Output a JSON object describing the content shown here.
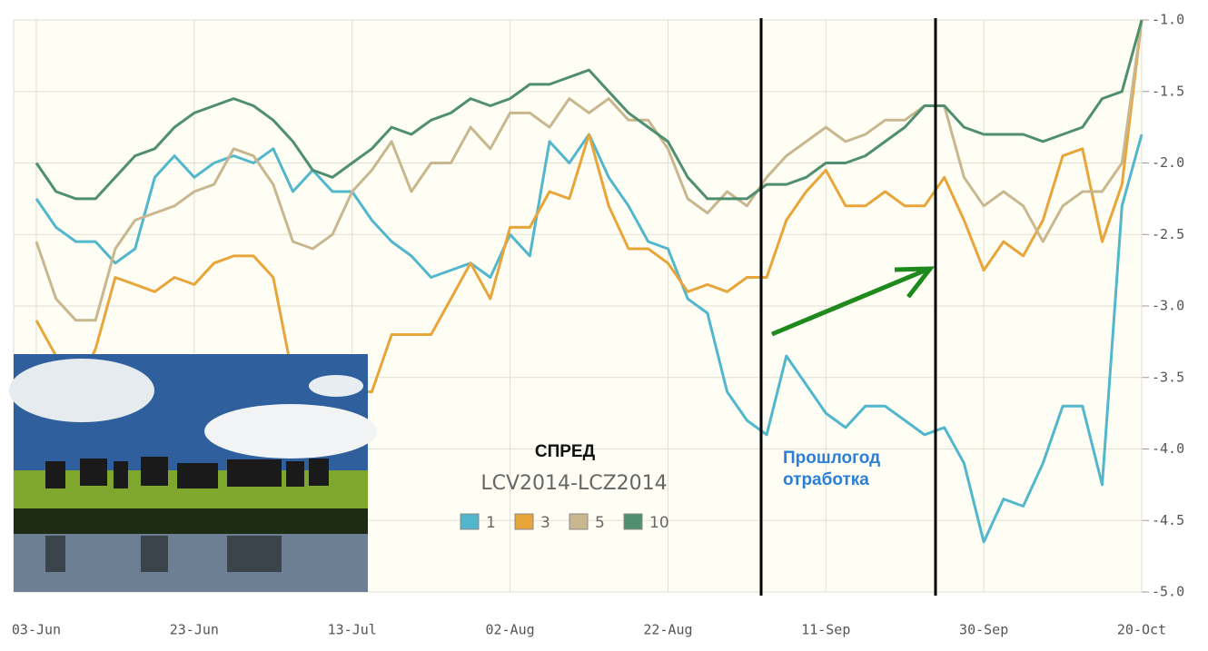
{
  "chart_data": {
    "type": "line",
    "title": "СПРЕД",
    "subtitle": "LCV2014-LCZ2014",
    "annotations": [
      "Прошлогод",
      "отработка"
    ],
    "categories": [
      "03-Jun",
      null,
      null,
      null,
      null,
      null,
      null,
      null,
      "23-Jun",
      null,
      null,
      null,
      null,
      null,
      null,
      null,
      "13-Jul",
      null,
      null,
      null,
      null,
      null,
      null,
      null,
      "02-Aug",
      null,
      null,
      null,
      null,
      null,
      null,
      null,
      "22-Aug",
      null,
      null,
      null,
      null,
      null,
      null,
      null,
      "11-Sep",
      null,
      null,
      null,
      null,
      null,
      null,
      null,
      "30-Sep",
      null,
      null,
      null,
      null,
      null,
      null,
      null,
      "20-Oct"
    ],
    "series": [
      {
        "name": "1",
        "color": "#52b6cc",
        "values": [
          -2.25,
          -2.45,
          -2.55,
          -2.55,
          -2.7,
          -2.6,
          -2.1,
          -1.95,
          -2.1,
          -2.0,
          -1.95,
          -2.0,
          -1.9,
          -2.2,
          -2.05,
          -2.2,
          -2.2,
          -2.4,
          -2.55,
          -2.65,
          -2.8,
          -2.75,
          -2.7,
          -2.8,
          -2.5,
          -2.65,
          -1.85,
          -2.0,
          -1.8,
          -2.1,
          -2.3,
          -2.55,
          -2.6,
          -2.95,
          -3.05,
          -3.6,
          -3.8,
          -3.9,
          -3.35,
          -3.55,
          -3.75,
          -3.85,
          -3.7,
          -3.7,
          -3.8,
          -3.9,
          -3.85,
          -4.1,
          -4.65,
          -4.35,
          -4.4,
          -4.1,
          -3.7,
          -3.7,
          -4.25,
          -2.3,
          -1.8
        ]
      },
      {
        "name": "3",
        "color": "#e8a53a",
        "values": [
          -3.1,
          -3.35,
          -3.6,
          -3.3,
          -2.8,
          -2.85,
          -2.9,
          -2.8,
          -2.85,
          -2.7,
          -2.65,
          -2.65,
          -2.8,
          -3.5,
          -3.8,
          -3.7,
          -3.6,
          -3.6,
          -3.2,
          -3.2,
          -3.2,
          -2.95,
          -2.7,
          -2.95,
          -2.45,
          -2.45,
          -2.2,
          -2.25,
          -1.8,
          -2.3,
          -2.6,
          -2.6,
          -2.7,
          -2.9,
          -2.85,
          -2.9,
          -2.8,
          -2.8,
          -2.4,
          -2.2,
          -2.05,
          -2.3,
          -2.3,
          -2.2,
          -2.3,
          -2.3,
          -2.1,
          -2.4,
          -2.75,
          -2.55,
          -2.65,
          -2.4,
          -1.95,
          -1.9,
          -2.55,
          -2.15,
          -1.0
        ]
      },
      {
        "name": "5",
        "color": "#c8b78f",
        "values": [
          -2.55,
          -2.95,
          -3.1,
          -3.1,
          -2.6,
          -2.4,
          -2.35,
          -2.3,
          -2.2,
          -2.15,
          -1.9,
          -1.95,
          -2.15,
          -2.55,
          -2.6,
          -2.5,
          -2.2,
          -2.05,
          -1.85,
          -2.2,
          -2.0,
          -2.0,
          -1.75,
          -1.9,
          -1.65,
          -1.65,
          -1.75,
          -1.55,
          -1.65,
          -1.55,
          -1.7,
          -1.7,
          -1.9,
          -2.25,
          -2.35,
          -2.2,
          -2.3,
          -2.1,
          -1.95,
          -1.85,
          -1.75,
          -1.85,
          -1.8,
          -1.7,
          -1.7,
          -1.6,
          -1.6,
          -2.1,
          -2.3,
          -2.2,
          -2.3,
          -2.55,
          -2.3,
          -2.2,
          -2.2,
          -2.0,
          -1.0
        ]
      },
      {
        "name": "10",
        "color": "#4f8f70",
        "values": [
          -2.0,
          -2.2,
          -2.25,
          -2.25,
          -2.1,
          -1.95,
          -1.9,
          -1.75,
          -1.65,
          -1.6,
          -1.55,
          -1.6,
          -1.7,
          -1.85,
          -2.05,
          -2.1,
          -2.0,
          -1.9,
          -1.75,
          -1.8,
          -1.7,
          -1.65,
          -1.55,
          -1.6,
          -1.55,
          -1.45,
          -1.45,
          -1.4,
          -1.35,
          -1.5,
          -1.65,
          -1.75,
          -1.85,
          -2.1,
          -2.25,
          -2.25,
          -2.25,
          -2.15,
          -2.15,
          -2.1,
          -2.0,
          -2.0,
          -1.95,
          -1.85,
          -1.75,
          -1.6,
          -1.6,
          -1.75,
          -1.8,
          -1.8,
          -1.8,
          -1.85,
          -1.8,
          -1.75,
          -1.55,
          -1.5,
          -1.0
        ]
      }
    ],
    "ylim": [
      -5,
      -1
    ],
    "yticks": [
      {
        "value": -5,
        "label": "-5.0"
      },
      -4.5,
      {
        "value": -4,
        "label": "-4.0"
      },
      -3.5,
      {
        "value": -3,
        "label": "-3.0"
      },
      -2.5,
      {
        "value": -2,
        "label": "-2.0"
      },
      -1.5,
      {
        "value": -1,
        "label": "-1.0"
      }
    ],
    "grid": true
  }
}
